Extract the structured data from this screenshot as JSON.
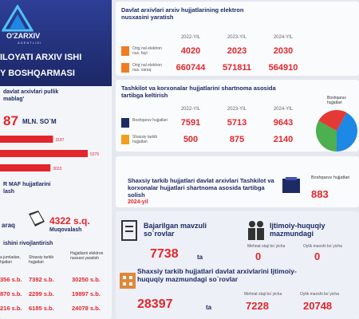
{
  "logo": {
    "name": "O'ZARXIV",
    "subtitle": "AGENTLIGI"
  },
  "header": {
    "line1": "ILOYATI ARXIV ISHI",
    "line2": "Y BOSHQARMASI"
  },
  "income": {
    "title": "davlat arxivlari pullik",
    "title2": "mablag'",
    "total": "87",
    "unit": "MLN. SO`M",
    "bars": [
      3187,
      5275,
      3033
    ]
  },
  "maf": {
    "title": "R MAF hujjatlarini",
    "title2": "lash",
    "left_unit": "araq",
    "value": "4322 s.q.",
    "label": "Muqovalash"
  },
  "development": {
    "title": "ishini rivojlantirish",
    "headers": [
      "a jumladan, hjatlari",
      "Shaxsiy tarkib hujjatlari",
      "Hujjatlarni elektron nusxasi yaratish"
    ],
    "rows": [
      [
        "356 s.b.",
        "7392 s.b.",
        "30250 s.b."
      ],
      [
        "870 s.b.",
        "2299 s.b.",
        "19897 s.b."
      ],
      [
        "216 s.b.",
        "6185 s.b.",
        "24078 s.b."
      ]
    ]
  },
  "digital": {
    "title": "Davlat arxivlari arxiv hujjatlarining elektron nusxasini yaratish",
    "years": [
      "2022-YIL",
      "2023-YIL",
      "2024-YIL"
    ],
    "rows": [
      {
        "label": "Orig`nal elektron nus. fayl",
        "values": [
          4020,
          2023,
          2030
        ]
      },
      {
        "label": "Orig`nal elektron nus. varaq",
        "values": [
          660744,
          571811,
          564910
        ]
      }
    ]
  },
  "contract": {
    "title": "Tashkilot va korxonalar hujjatlarini shartnoma asosida tartibga keltirish",
    "years": [
      "2022-YIL",
      "2023-YIL",
      "2024-YIL"
    ],
    "rows": [
      {
        "label": "Boshqaruv hujjatlari",
        "values": [
          7591,
          5713,
          9643
        ]
      },
      {
        "label": "Shaxsiy tarkib hujjatlari",
        "values": [
          500,
          875,
          2140
        ]
      }
    ],
    "pie_label": "Boshqaruv hujjatlari",
    "pie_colors": [
      "#4caf50",
      "#e53935",
      "#1e88e5"
    ]
  },
  "arrange": {
    "title": "Shaxsiy tarkib hujjatlari davlat arxivlari Tashkilot va korxonalar hujjatlari shartnoma asosida tartibga solish",
    "year": "2024-yil",
    "label": "Boshqaruv hujjatlari",
    "value": "883"
  },
  "requests": {
    "title": "Bajarilgan mavzuli so`rovlar",
    "value": "7738",
    "unit": "ta"
  },
  "social": {
    "title": "Ijtimoiy-huquqiy mazmundagi",
    "labels": [
      "Mehnat staji bo`yicha",
      "Oylik maoshi bo`yicha"
    ],
    "values": [
      "0",
      "0"
    ]
  },
  "personnel": {
    "title": "Shaxsiy tarkib hujjatlari davlat arxivlarini Ijtimoiy-huquqiy mazmundagi so`rovlar",
    "value": "28397",
    "unit": "ta",
    "labels": [
      "Mehnat staji bo`yicha",
      "Oylik maoshi bo`yicha"
    ],
    "values": [
      "7228",
      "20748"
    ]
  }
}
